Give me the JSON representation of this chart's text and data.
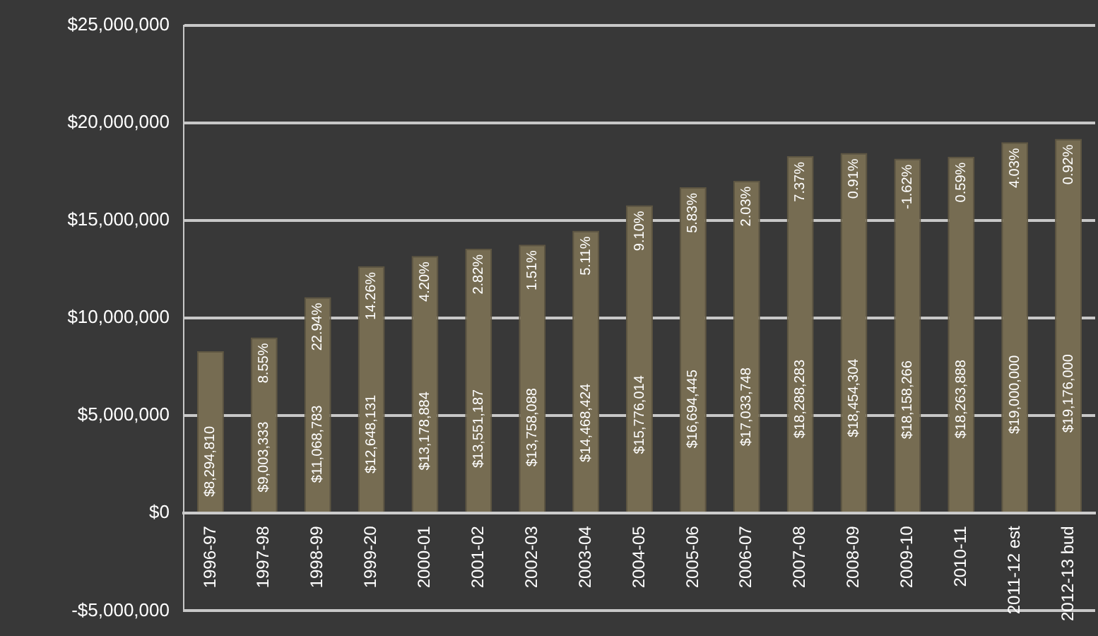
{
  "chart_data": {
    "type": "bar",
    "categories": [
      "1996-97",
      "1997-98",
      "1998-99",
      "1999-20",
      "2000-01",
      "2001-02",
      "2002-03",
      "2003-04",
      "2004-05",
      "2005-06",
      "2006-07",
      "2007-08",
      "2008-09",
      "2009-10",
      "2010-11",
      "2011-12 est",
      "2012-13 bud"
    ],
    "series": [
      {
        "color": "#766c52",
        "values": [
          8294810,
          9003333,
          11068783,
          12648131,
          13178884,
          13551187,
          13758088,
          14468424,
          15776014,
          16694445,
          17033748,
          18288283,
          18454304,
          18158266,
          18263888,
          19000000,
          19176000
        ],
        "value_labels": [
          "$8,294,810",
          "$9,003,333",
          "$11,068,783",
          "$12,648,131",
          "$13,178,884",
          "$13,551,187",
          "$13,758,088",
          "$14,468,424",
          "$15,776,014",
          "$16,694,445",
          "$17,033,748",
          "$18,288,283",
          "$18,454,304",
          "$18,158,266",
          "$18,263,888",
          "$19,000,000",
          "$19,176,000"
        ]
      }
    ],
    "annotations": [
      {
        "text": "8.55%",
        "x": "1997-98",
        "y": 9003333
      },
      {
        "text": "22.94%",
        "x": "1998-99",
        "y": 11068783
      },
      {
        "text": "14.26%",
        "x": "1999-20",
        "y": 12648131
      },
      {
        "text": "4.20%",
        "x": "2000-01",
        "y": 13178884
      },
      {
        "text": "2.82%",
        "x": "2001-02",
        "y": 13551187
      },
      {
        "text": "1.51%",
        "x": "2002-03",
        "y": 13758088
      },
      {
        "text": "5.11%",
        "x": "2003-04",
        "y": 14468424
      },
      {
        "text": "9.10%",
        "x": "2004-05",
        "y": 15776014
      },
      {
        "text": "5.83%",
        "x": "2005-06",
        "y": 16694445
      },
      {
        "text": "2.03%",
        "x": "2006-07",
        "y": 17033748
      },
      {
        "text": "7.37%",
        "x": "2007-08",
        "y": 18288283
      },
      {
        "text": "0.91%",
        "x": "2008-09",
        "y": 18454304
      },
      {
        "text": "-1.62%",
        "x": "2009-10",
        "y": 18158266
      },
      {
        "text": "0.59%",
        "x": "2010-11",
        "y": 18263888
      },
      {
        "text": "4.03%",
        "x": "2011-12 est",
        "y": 19000000
      },
      {
        "text": "0.92%",
        "x": "2012-13 bud",
        "y": 19176000
      }
    ],
    "ylim": [
      -5000000,
      25000000
    ],
    "yticks": [
      {
        "value": -5000000,
        "label": "-$5,000,000"
      },
      {
        "value": 0,
        "label": "$0"
      },
      {
        "value": 5000000,
        "label": "$5,000,000"
      },
      {
        "value": 10000000,
        "label": "$10,000,000"
      },
      {
        "value": 15000000,
        "label": "$15,000,000"
      },
      {
        "value": 20000000,
        "label": "$20,000,000"
      },
      {
        "value": 25000000,
        "label": "$25,000,000"
      }
    ],
    "grid": "y"
  }
}
